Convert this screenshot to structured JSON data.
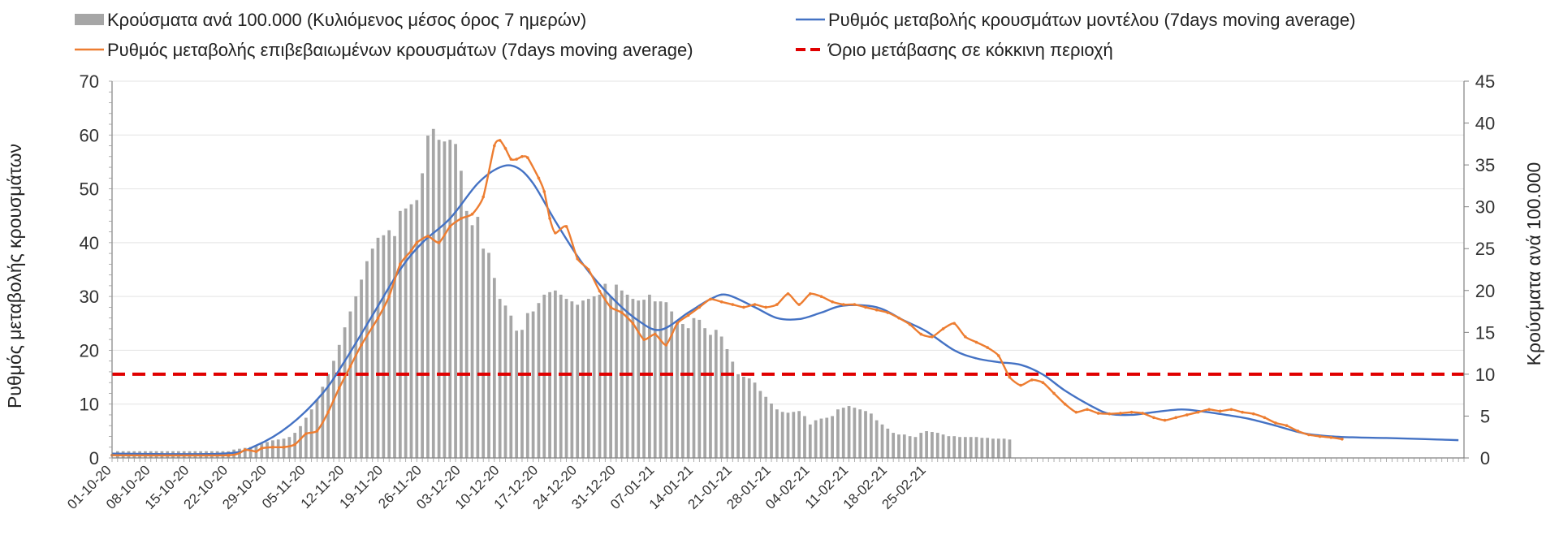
{
  "chart_data": {
    "type": "bar+line",
    "title": "",
    "y_left_label": "Ρυθμός μεταβολής κρουσμάτων",
    "y_right_label": "Κρούσματα ανά 100.000",
    "y_left_lim": [
      0,
      70
    ],
    "y_left_ticks": [
      0,
      10,
      20,
      30,
      40,
      50,
      60,
      70
    ],
    "y_right_lim": [
      0,
      45
    ],
    "y_right_ticks": [
      0,
      5,
      10,
      15,
      20,
      25,
      30,
      35,
      40,
      45
    ],
    "grid": "horizontal",
    "legend_position": "top",
    "x_tick_labels": [
      "01-10-20",
      "08-10-20",
      "15-10-20",
      "22-10-20",
      "29-10-20",
      "05-11-20",
      "12-11-20",
      "19-11-20",
      "26-11-20",
      "03-12-20",
      "10-12-20",
      "17-12-20",
      "24-12-20",
      "31-12-20",
      "07-01-21",
      "14-01-21",
      "21-01-21",
      "28-01-21",
      "04-02-21",
      "11-02-21",
      "18-02-21",
      "25-02-21"
    ],
    "series": [
      {
        "name": "Κρούσματα ανά 100.000 (Κυλιόμενος μέσος όρος 7 ημερών)",
        "kind": "bar",
        "axis": "right",
        "color": "#a6a6a6",
        "values": [
          0.8,
          0.8,
          0.8,
          0.8,
          0.8,
          0.8,
          0.8,
          0.8,
          0.8,
          0.8,
          0.8,
          0.8,
          0.8,
          0.8,
          0.8,
          0.8,
          0.8,
          0.8,
          0.8,
          0.8,
          0.8,
          1.0,
          1.1,
          1.2,
          1.3,
          1.5,
          1.7,
          1.9,
          2.1,
          2.2,
          2.3,
          2.5,
          3.0,
          3.8,
          4.8,
          5.8,
          7.0,
          8.5,
          10.0,
          11.6,
          13.5,
          15.6,
          17.5,
          19.3,
          21.3,
          23.5,
          25.0,
          26.3,
          26.6,
          27.2,
          26.5,
          29.5,
          29.8,
          30.3,
          30.8,
          34.0,
          38.5,
          39.3,
          38.0,
          37.8,
          38.0,
          37.5,
          34.3,
          29.5,
          27.8,
          28.8,
          25.0,
          24.5,
          21.5,
          19.0,
          18.2,
          17.0,
          15.2,
          15.3,
          17.3,
          17.5,
          18.5,
          19.5,
          19.8,
          20.0,
          19.5,
          19.0,
          18.7,
          18.3,
          18.8,
          19.0,
          19.3,
          19.5,
          20.8,
          19.3,
          20.7,
          20.0,
          19.5,
          19.0,
          18.8,
          18.9,
          19.5,
          18.7,
          18.7,
          18.6,
          17.5,
          16.2,
          16.0,
          15.5,
          16.7,
          16.5,
          15.5,
          14.7,
          15.3,
          14.5,
          13.0,
          11.5,
          10.0,
          9.7,
          9.5,
          9.0,
          8.0,
          7.3,
          6.5,
          5.8,
          5.5,
          5.4,
          5.5,
          5.6,
          5.0,
          4.0,
          4.5,
          4.7,
          4.8,
          5.0,
          5.8,
          6.0,
          6.2,
          6.0,
          5.8,
          5.6,
          5.3,
          4.5,
          4.0,
          3.5,
          3.0,
          2.8,
          2.8,
          2.6,
          2.5,
          3.0,
          3.2,
          3.1,
          3.0,
          2.8,
          2.6,
          2.6,
          2.5,
          2.5,
          2.5,
          2.5,
          2.4,
          2.4,
          2.3,
          2.3,
          2.3,
          2.2
        ]
      },
      {
        "name": "Ρυθμός μεταβολής κρουσμάτων μοντέλου (7days moving average)",
        "kind": "line",
        "axis": "left",
        "color": "#4472c4",
        "points": [
          [
            0,
            0.8
          ],
          [
            20,
            0.8
          ],
          [
            26,
            2.3
          ],
          [
            32,
            6
          ],
          [
            38,
            12
          ],
          [
            42,
            18
          ],
          [
            47,
            26.5
          ],
          [
            52,
            35
          ],
          [
            56,
            40
          ],
          [
            61,
            44.5
          ],
          [
            66,
            51
          ],
          [
            70,
            54
          ],
          [
            73,
            54
          ],
          [
            76,
            51
          ],
          [
            80,
            44
          ],
          [
            85,
            36
          ],
          [
            90,
            30
          ],
          [
            95,
            25.5
          ],
          [
            99,
            23.8
          ],
          [
            104,
            27
          ],
          [
            108,
            29.5
          ],
          [
            111,
            30.3
          ],
          [
            116,
            28
          ],
          [
            120,
            26
          ],
          [
            124,
            25.8
          ],
          [
            128,
            27
          ],
          [
            132,
            28.3
          ],
          [
            138,
            28
          ],
          [
            143,
            25.5
          ],
          [
            147,
            23.5
          ],
          [
            152,
            20
          ],
          [
            156,
            18.5
          ],
          [
            160,
            17.8
          ],
          [
            164,
            17.3
          ],
          [
            168,
            15.5
          ],
          [
            172,
            12.5
          ],
          [
            177,
            9.5
          ],
          [
            180,
            8.2
          ],
          [
            184,
            8
          ],
          [
            188,
            8.5
          ],
          [
            193,
            9
          ],
          [
            197,
            8.6
          ],
          [
            201,
            8
          ],
          [
            205,
            7.3
          ],
          [
            210,
            6
          ],
          [
            215,
            4.6
          ],
          [
            220,
            4
          ],
          [
            225,
            3.8
          ],
          [
            230,
            3.7
          ],
          [
            237,
            3.5
          ],
          [
            240,
            3.4
          ],
          [
            243,
            3.3
          ]
        ]
      },
      {
        "name": "Ρυθμός μεταβολής επιβεβαιωμένων κρουσμάτων (7days moving average)",
        "kind": "line",
        "axis": "left",
        "color": "#ed7d31",
        "points": [
          [
            0,
            0.5
          ],
          [
            21,
            0.5
          ],
          [
            24,
            1.5
          ],
          [
            26,
            1.2
          ],
          [
            27,
            1.8
          ],
          [
            29,
            2
          ],
          [
            31,
            2
          ],
          [
            33,
            2.5
          ],
          [
            35,
            4.5
          ],
          [
            37,
            5
          ],
          [
            39,
            8.5
          ],
          [
            41,
            13
          ],
          [
            43,
            17
          ],
          [
            45,
            21
          ],
          [
            48,
            26
          ],
          [
            50,
            30
          ],
          [
            52,
            36
          ],
          [
            54,
            38.5
          ],
          [
            55,
            40
          ],
          [
            57,
            41.2
          ],
          [
            59,
            40
          ],
          [
            61,
            43
          ],
          [
            63,
            44.5
          ],
          [
            65,
            45.3
          ],
          [
            67,
            48.5
          ],
          [
            69,
            58
          ],
          [
            70,
            59
          ],
          [
            71,
            57.5
          ],
          [
            72,
            55.5
          ],
          [
            73,
            55.5
          ],
          [
            74,
            56
          ],
          [
            75,
            55.8
          ],
          [
            77,
            52
          ],
          [
            78,
            49.5
          ],
          [
            79,
            44.5
          ],
          [
            80,
            41.8
          ],
          [
            82,
            43
          ],
          [
            84,
            37
          ],
          [
            86,
            35
          ],
          [
            88,
            31
          ],
          [
            90,
            28
          ],
          [
            92,
            27
          ],
          [
            94,
            25
          ],
          [
            96,
            22
          ],
          [
            98,
            23
          ],
          [
            100,
            21
          ],
          [
            102,
            25
          ],
          [
            104,
            26.5
          ],
          [
            106,
            28
          ],
          [
            108,
            29.5
          ],
          [
            110,
            29
          ],
          [
            112,
            28.5
          ],
          [
            114,
            28
          ],
          [
            116,
            28.5
          ],
          [
            118,
            28
          ],
          [
            120,
            28.5
          ],
          [
            122,
            30.5
          ],
          [
            124,
            28.5
          ],
          [
            126,
            30.5
          ],
          [
            128,
            30
          ],
          [
            130,
            29
          ],
          [
            132,
            28.5
          ],
          [
            134,
            28.5
          ],
          [
            136,
            28
          ],
          [
            138,
            27.5
          ],
          [
            140,
            27
          ],
          [
            142,
            26
          ],
          [
            144,
            24.8
          ],
          [
            146,
            23
          ],
          [
            148,
            22.5
          ],
          [
            150,
            24
          ],
          [
            152,
            25
          ],
          [
            154,
            22.5
          ],
          [
            156,
            21.5
          ],
          [
            158,
            20.5
          ],
          [
            160,
            19
          ],
          [
            162,
            15
          ],
          [
            164,
            13.5
          ],
          [
            166,
            14.5
          ],
          [
            168,
            14
          ],
          [
            170,
            12
          ],
          [
            172,
            10
          ],
          [
            174,
            8.5
          ],
          [
            176,
            9
          ],
          [
            178,
            8.3
          ],
          [
            180,
            8.2
          ],
          [
            182,
            8.3
          ],
          [
            184,
            8.5
          ],
          [
            186,
            8.3
          ],
          [
            188,
            7.5
          ],
          [
            190,
            7
          ],
          [
            192,
            7.5
          ],
          [
            194,
            8
          ],
          [
            196,
            8.5
          ],
          [
            198,
            9
          ],
          [
            200,
            8.7
          ],
          [
            202,
            9
          ],
          [
            204,
            8.5
          ],
          [
            206,
            8.2
          ],
          [
            208,
            7.5
          ],
          [
            210,
            6.5
          ],
          [
            212,
            6
          ],
          [
            214,
            5
          ],
          [
            216,
            4.3
          ],
          [
            218,
            4
          ],
          [
            220,
            3.8
          ],
          [
            222,
            3.5
          ]
        ]
      },
      {
        "name": "Όριο μετάβασης σε κόκκινη περιοχή",
        "kind": "threshold",
        "axis": "right",
        "color": "#e00000",
        "value": 10
      }
    ]
  }
}
